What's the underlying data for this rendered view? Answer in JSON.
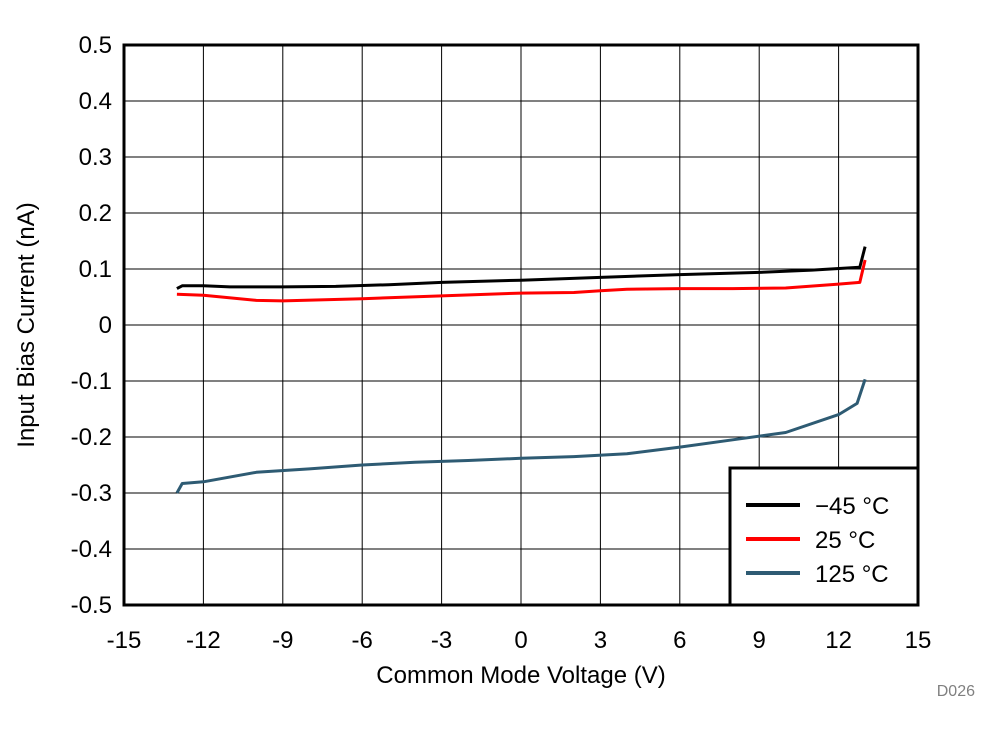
{
  "chart_data": {
    "type": "line",
    "xlabel": "Common Mode Voltage (V)",
    "ylabel": "Input Bias Current (nA)",
    "xlim": [
      -15,
      15
    ],
    "ylim": [
      -0.5,
      0.5
    ],
    "xticks": [
      -15,
      -12,
      -9,
      -6,
      -3,
      0,
      3,
      6,
      9,
      12,
      15
    ],
    "yticks": [
      0.5,
      0.4,
      0.3,
      0.2,
      0.1,
      0,
      -0.1,
      -0.2,
      -0.3,
      -0.4,
      -0.5
    ],
    "xtick_labels": [
      "-15",
      "-12",
      "-9",
      "-6",
      "-3",
      "0",
      "3",
      "6",
      "9",
      "12",
      "15"
    ],
    "ytick_labels": [
      "0.5",
      "0.4",
      "0.3",
      "0.2",
      "0.1",
      "0",
      "-0.1",
      "-0.2",
      "-0.3",
      "-0.4",
      "-0.5"
    ],
    "grid": true,
    "legend_position": "bottom-right",
    "series": [
      {
        "name": "−45 °C",
        "color": "#000000",
        "points": [
          [
            -13,
            0.065
          ],
          [
            -12.8,
            0.07
          ],
          [
            -12,
            0.07
          ],
          [
            -11,
            0.068
          ],
          [
            -9,
            0.068
          ],
          [
            -7,
            0.069
          ],
          [
            -5,
            0.072
          ],
          [
            -3,
            0.076
          ],
          [
            0,
            0.08
          ],
          [
            3,
            0.085
          ],
          [
            6,
            0.09
          ],
          [
            9,
            0.094
          ],
          [
            11,
            0.098
          ],
          [
            12.8,
            0.103
          ],
          [
            13,
            0.14
          ]
        ]
      },
      {
        "name": "25 °C",
        "color": "#ff0000",
        "points": [
          [
            -13,
            0.055
          ],
          [
            -12,
            0.053
          ],
          [
            -10,
            0.044
          ],
          [
            -9,
            0.043
          ],
          [
            -6,
            0.047
          ],
          [
            -3,
            0.052
          ],
          [
            0,
            0.057
          ],
          [
            2,
            0.058
          ],
          [
            3,
            0.061
          ],
          [
            4,
            0.064
          ],
          [
            6,
            0.065
          ],
          [
            8,
            0.065
          ],
          [
            10,
            0.066
          ],
          [
            12,
            0.073
          ],
          [
            12.8,
            0.076
          ],
          [
            13,
            0.116
          ]
        ]
      },
      {
        "name": "125 °C",
        "color": "#2e5b73",
        "points": [
          [
            -13,
            -0.3
          ],
          [
            -12.8,
            -0.283
          ],
          [
            -12,
            -0.28
          ],
          [
            -10,
            -0.263
          ],
          [
            -8,
            -0.257
          ],
          [
            -6,
            -0.25
          ],
          [
            -4,
            -0.245
          ],
          [
            -2,
            -0.242
          ],
          [
            0,
            -0.238
          ],
          [
            2,
            -0.235
          ],
          [
            4,
            -0.23
          ],
          [
            6,
            -0.218
          ],
          [
            8,
            -0.205
          ],
          [
            10,
            -0.192
          ],
          [
            12,
            -0.16
          ],
          [
            12.7,
            -0.14
          ],
          [
            13,
            -0.097
          ]
        ]
      }
    ]
  },
  "footer_code": "D026"
}
